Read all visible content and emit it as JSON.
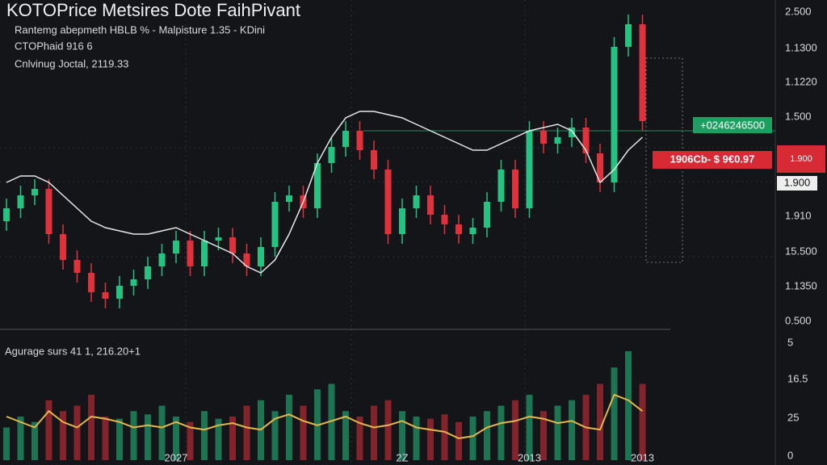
{
  "chart_data": {
    "type": "candlestick",
    "title": "KOTOPrice Metsires Dote FaihPivant",
    "subtitle_lines": [
      "Rantemg abepmeth HBLB % - Malpisture 1.35 - KDini",
      "CTOPhaid 916 6",
      "Cnlvinug Joctal, 2119.33"
    ],
    "price_labels": [
      "2.500",
      "1.1300",
      "1.1220",
      "1.500",
      "1.910",
      "15.500",
      "1.1350",
      "0.500"
    ],
    "badges": {
      "green": "+0246246500",
      "red": "1906Cb- $ 9€0.97",
      "white": "1.900",
      "red_small": "1.900"
    },
    "volume_title": "Agurage surs 41 1, 216.20+1",
    "volume_labels": [
      "5",
      "16.5",
      "25",
      "0"
    ],
    "categories": [
      null,
      null,
      null,
      null,
      null,
      null,
      null,
      null,
      null,
      null,
      null,
      null,
      "2027",
      null,
      null,
      null,
      null,
      null,
      null,
      null,
      null,
      null,
      null,
      null,
      null,
      null,
      null,
      null,
      "2Z",
      null,
      null,
      null,
      null,
      null,
      null,
      null,
      null,
      "2013",
      null,
      null,
      null,
      null,
      null,
      null,
      null,
      "2013"
    ],
    "ylim": [
      0,
      100
    ],
    "up_color": "#26c281",
    "down_color": "#e0323c",
    "open": [
      34,
      38,
      42,
      44,
      30,
      22,
      18,
      12,
      10,
      14,
      16,
      20,
      24,
      28,
      20,
      28,
      29,
      24,
      20,
      26,
      40,
      42,
      38,
      52,
      57,
      62,
      56,
      50,
      30,
      38,
      42,
      36,
      33,
      30,
      32,
      40,
      50,
      38,
      62,
      58,
      60,
      63,
      55,
      46,
      88,
      95
    ],
    "high": [
      41,
      45,
      47,
      47,
      33,
      25,
      21,
      15,
      17,
      19,
      23,
      27,
      31,
      31,
      31,
      32,
      32,
      27,
      29,
      43,
      45,
      45,
      55,
      60,
      65,
      65,
      59,
      53,
      41,
      45,
      45,
      39,
      36,
      35,
      43,
      53,
      53,
      65,
      65,
      63,
      66,
      66,
      58,
      91,
      98,
      98
    ],
    "low": [
      31,
      35,
      39,
      27,
      19,
      15,
      9,
      7,
      7,
      11,
      13,
      17,
      21,
      17,
      17,
      25,
      21,
      17,
      17,
      23,
      37,
      35,
      35,
      49,
      54,
      53,
      47,
      27,
      27,
      35,
      33,
      30,
      27,
      27,
      29,
      37,
      35,
      35,
      55,
      55,
      57,
      52,
      43,
      43,
      85,
      62
    ],
    "close": [
      38,
      42,
      44,
      30,
      22,
      18,
      12,
      10,
      14,
      16,
      20,
      24,
      28,
      20,
      28,
      29,
      24,
      20,
      26,
      40,
      42,
      38,
      52,
      57,
      62,
      56,
      50,
      30,
      38,
      42,
      36,
      33,
      30,
      32,
      40,
      50,
      38,
      62,
      58,
      60,
      63,
      55,
      46,
      88,
      95,
      65
    ],
    "moving_average": {
      "color": "#e8e8e8",
      "values": [
        46,
        48,
        48,
        46,
        42,
        38,
        34,
        32,
        31,
        30,
        30,
        31,
        32,
        30,
        28,
        26,
        24,
        20,
        18,
        22,
        30,
        40,
        52,
        60,
        66,
        68,
        68,
        67,
        66,
        64,
        62,
        60,
        58,
        56,
        56,
        58,
        60,
        62,
        63,
        64,
        62,
        56,
        46,
        50,
        56,
        60
      ]
    },
    "volume_ylim": [
      0,
      100
    ],
    "volume": [
      30,
      40,
      35,
      55,
      45,
      50,
      60,
      40,
      38,
      45,
      42,
      50,
      40,
      35,
      45,
      38,
      40,
      50,
      55,
      45,
      60,
      50,
      65,
      70,
      45,
      40,
      50,
      55,
      45,
      40,
      38,
      42,
      35,
      40,
      45,
      50,
      55,
      60,
      45,
      50,
      55,
      60,
      70,
      85,
      100,
      70
    ],
    "volume_average": {
      "color": "#e6b84a",
      "values": [
        40,
        35,
        30,
        45,
        35,
        30,
        40,
        38,
        35,
        30,
        32,
        30,
        35,
        30,
        28,
        32,
        34,
        30,
        28,
        38,
        42,
        36,
        32,
        36,
        40,
        34,
        30,
        32,
        36,
        30,
        28,
        26,
        20,
        22,
        30,
        34,
        36,
        40,
        38,
        34,
        36,
        30,
        28,
        60,
        55,
        45
      ]
    }
  }
}
